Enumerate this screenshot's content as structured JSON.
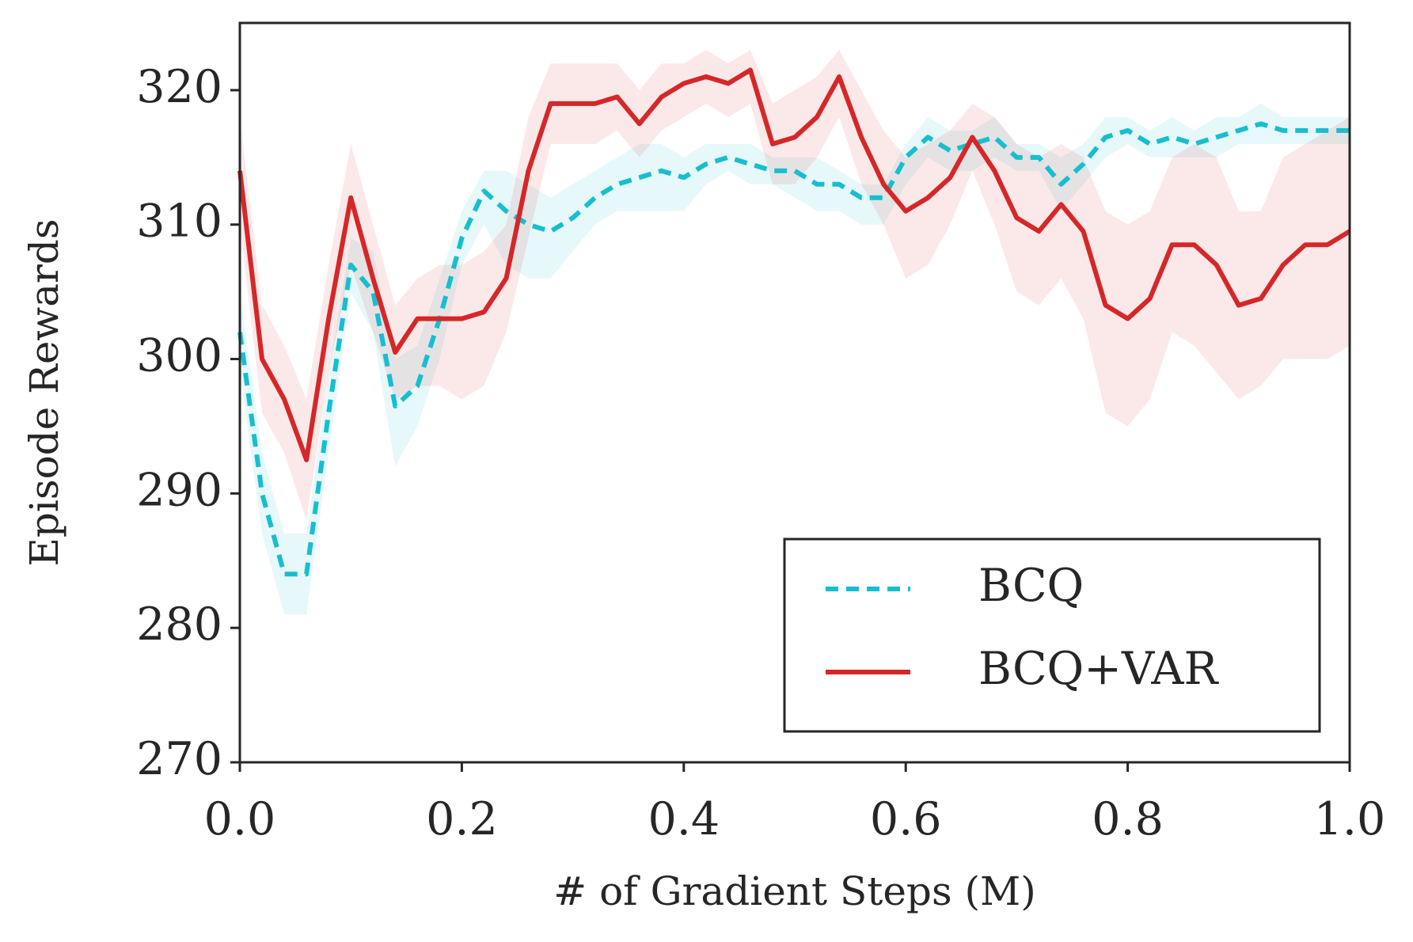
{
  "chart_data": {
    "type": "line",
    "xlabel": "# of Gradient Steps (M)",
    "ylabel": "Episode Rewards",
    "x": [
      0,
      0.02,
      0.04,
      0.06,
      0.08,
      0.1,
      0.12,
      0.14,
      0.16,
      0.18,
      0.2,
      0.22,
      0.24,
      0.26,
      0.28,
      0.3,
      0.32,
      0.34,
      0.36,
      0.38,
      0.4,
      0.42,
      0.44,
      0.46,
      0.48,
      0.5,
      0.52,
      0.54,
      0.56,
      0.58,
      0.6,
      0.62,
      0.64,
      0.66,
      0.68,
      0.7,
      0.72,
      0.74,
      0.76,
      0.78,
      0.8,
      0.82,
      0.84,
      0.86,
      0.88,
      0.9,
      0.92,
      0.94,
      0.96,
      0.98,
      1.0
    ],
    "series": [
      {
        "name": "BCQ",
        "color": "#17becf",
        "dash": true,
        "values": [
          302,
          290,
          284,
          284,
          296,
          307,
          305,
          296.5,
          298,
          303,
          309,
          312.5,
          311,
          310,
          309.5,
          310.5,
          312,
          313,
          313.5,
          314,
          313.5,
          314.5,
          315,
          314.5,
          314,
          314,
          313,
          313,
          312,
          312,
          315,
          316.5,
          315.5,
          316,
          316.5,
          315,
          315,
          313,
          314.5,
          316.5,
          317,
          316,
          316.5,
          316,
          316.5,
          317,
          317.5,
          317,
          317,
          317,
          317
        ],
        "lower": [
          299,
          287,
          281,
          281,
          293,
          305,
          302,
          292,
          295,
          300,
          307,
          310,
          307,
          306,
          306,
          308,
          310,
          311,
          311,
          311,
          311,
          313,
          314,
          313,
          313,
          312,
          311,
          311,
          310,
          310,
          313,
          315,
          314,
          314,
          315,
          314,
          314,
          311,
          313,
          315,
          316,
          315,
          315,
          315,
          315,
          316,
          316,
          316,
          316,
          316,
          316
        ],
        "upper": [
          305,
          293,
          287,
          287,
          299,
          309,
          308,
          300,
          301,
          306,
          311,
          314,
          314,
          313,
          312,
          313,
          314,
          315,
          316,
          316,
          315,
          316,
          316,
          316,
          315,
          315,
          315,
          314,
          313,
          313,
          316,
          318,
          317,
          317,
          318,
          316,
          316,
          315,
          316,
          318,
          318,
          317,
          318,
          317,
          318,
          318,
          319,
          318,
          318,
          318,
          318
        ]
      },
      {
        "name": "BCQ+VAR",
        "color": "#d62728",
        "dash": false,
        "values": [
          314,
          300,
          297,
          292.5,
          303,
          312,
          306,
          300.5,
          303,
          303,
          303,
          303.5,
          306,
          314,
          319,
          319,
          319,
          319.5,
          317.5,
          319.5,
          320.5,
          321,
          320.5,
          321.5,
          316,
          316.5,
          318,
          321,
          316.5,
          313,
          311,
          312,
          313.5,
          316.5,
          314,
          310.5,
          309.5,
          311.5,
          309.5,
          304,
          303,
          304.5,
          308.5,
          308.5,
          307,
          304,
          304.5,
          307,
          308.5,
          308.5,
          309.5
        ],
        "lower": [
          310,
          296,
          293,
          288,
          299,
          307,
          302,
          297,
          298,
          298,
          297,
          298,
          302,
          309,
          316,
          316,
          316,
          317,
          315,
          317,
          318,
          319,
          318,
          319,
          313,
          313,
          315,
          318,
          313,
          310,
          306,
          307,
          310,
          314,
          310,
          305,
          304,
          306,
          303,
          296,
          295,
          297,
          302,
          301,
          299,
          297,
          298,
          300,
          300,
          300,
          301
        ],
        "upper": [
          318,
          304,
          301,
          297,
          307,
          316,
          310,
          304,
          306,
          307,
          307,
          308,
          310,
          318,
          322,
          322,
          322,
          322,
          320,
          322,
          322,
          323,
          322,
          323,
          319,
          320,
          321,
          323,
          320,
          317,
          315,
          316,
          317,
          319,
          318,
          316,
          315,
          316,
          315,
          311,
          310,
          311,
          315,
          316,
          315,
          311,
          311,
          315,
          316,
          317,
          318
        ]
      }
    ],
    "xlim": [
      0,
      1.0
    ],
    "xticks": [
      {
        "value": 0,
        "label": "0.0"
      },
      0.2,
      0.4,
      0.6,
      0.8,
      {
        "value": 1.0,
        "label": "1.0"
      }
    ],
    "ylim": [
      270,
      325
    ],
    "yticks": [
      270,
      280,
      290,
      300,
      310,
      320
    ],
    "grid": false,
    "legend": "lower right"
  }
}
